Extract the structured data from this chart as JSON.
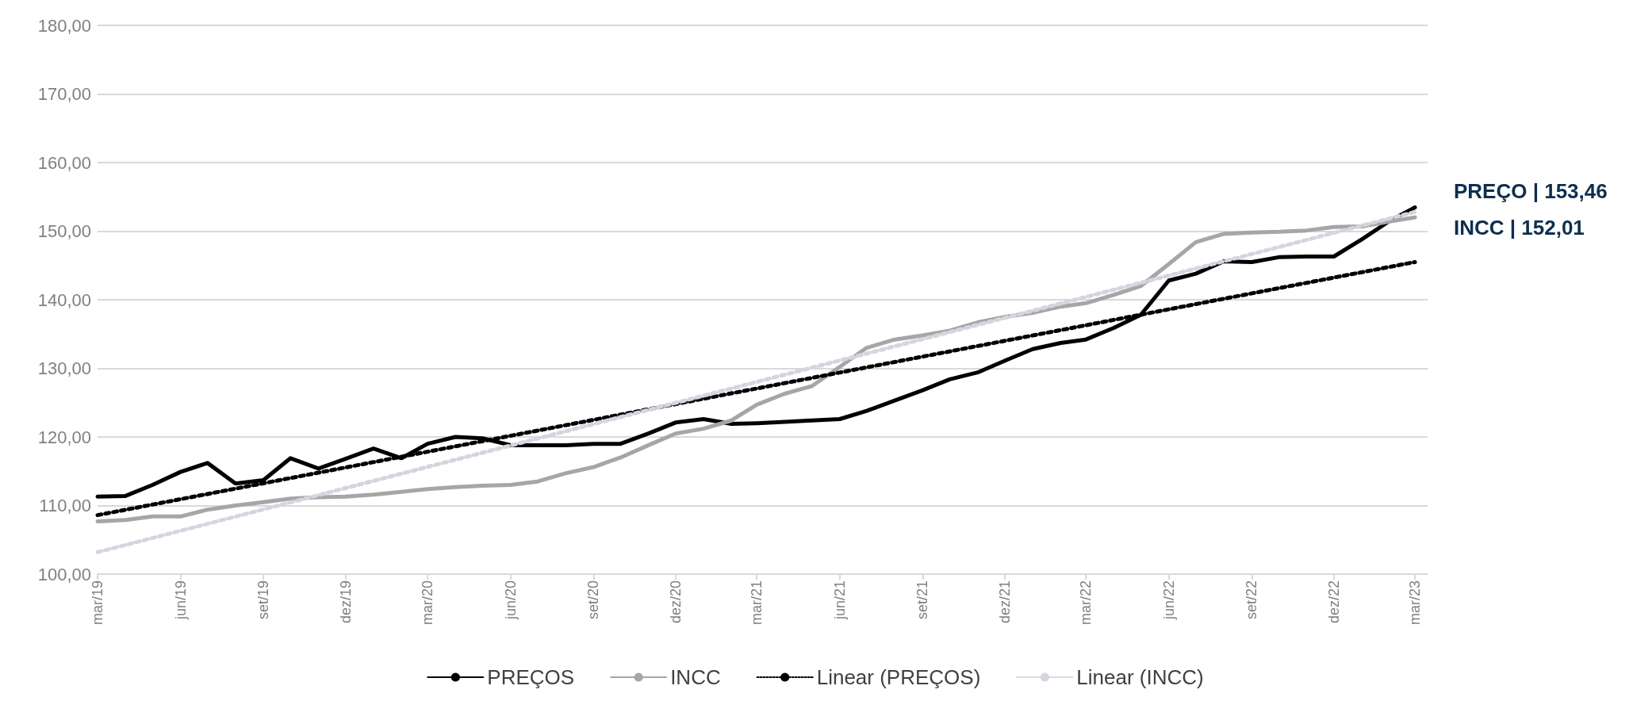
{
  "chart_data": {
    "type": "line",
    "x": [
      "2019-03",
      "2019-04",
      "2019-05",
      "2019-06",
      "2019-07",
      "2019-08",
      "2019-09",
      "2019-10",
      "2019-11",
      "2019-12",
      "2020-01",
      "2020-02",
      "2020-03",
      "2020-04",
      "2020-05",
      "2020-06",
      "2020-07",
      "2020-08",
      "2020-09",
      "2020-10",
      "2020-11",
      "2020-12",
      "2021-01",
      "2021-02",
      "2021-03",
      "2021-04",
      "2021-05",
      "2021-06",
      "2021-07",
      "2021-08",
      "2021-09",
      "2021-10",
      "2021-11",
      "2021-12",
      "2022-01",
      "2022-02",
      "2022-03",
      "2022-04",
      "2022-05",
      "2022-06",
      "2022-07",
      "2022-08",
      "2022-09",
      "2022-10",
      "2022-11",
      "2022-12",
      "2023-01",
      "2023-02",
      "2023-03"
    ],
    "series": [
      {
        "name": "PREÇOS",
        "color": "#000000",
        "line_style": "solid",
        "values": [
          111.3,
          111.4,
          113.0,
          114.9,
          116.2,
          113.2,
          113.7,
          116.9,
          115.4,
          116.8,
          118.3,
          116.9,
          119.0,
          120.0,
          119.8,
          118.8,
          118.8,
          118.8,
          119.0,
          119.0,
          120.5,
          122.1,
          122.6,
          121.9,
          122.0,
          122.2,
          122.4,
          122.6,
          123.8,
          125.3,
          126.8,
          128.4,
          129.4,
          131.1,
          132.8,
          133.7,
          134.2,
          135.9,
          137.8,
          142.8,
          143.8,
          145.6,
          145.5,
          146.2,
          146.3,
          146.3,
          148.8,
          151.5,
          153.46
        ]
      },
      {
        "name": "INCC",
        "color": "#a6a6a6",
        "line_style": "solid",
        "values": [
          107.7,
          107.9,
          108.4,
          108.4,
          109.4,
          110.0,
          110.5,
          111.0,
          111.2,
          111.3,
          111.6,
          112.0,
          112.4,
          112.7,
          112.9,
          113.0,
          113.5,
          114.7,
          115.6,
          117.0,
          118.8,
          120.5,
          121.2,
          122.4,
          124.7,
          126.3,
          127.4,
          130.2,
          133.0,
          134.2,
          134.8,
          135.5,
          136.7,
          137.5,
          138.1,
          139.0,
          139.5,
          140.7,
          142.0,
          145.2,
          148.4,
          149.6,
          149.8,
          149.9,
          150.1,
          150.6,
          150.7,
          151.4,
          152.01
        ]
      },
      {
        "name": "Linear (PREÇOS)",
        "color": "#000000",
        "line_style": "dotted",
        "x": [
          "2019-03",
          "2023-03"
        ],
        "values": [
          108.6,
          145.5
        ]
      },
      {
        "name": "Linear (INCC)",
        "color": "#d3d6de",
        "line_style": "dotted",
        "x": [
          "2019-03",
          "2023-03"
        ],
        "values": [
          103.2,
          152.8
        ]
      }
    ],
    "xlim": [
      "2019-03",
      "2023-03-15"
    ],
    "xticks": [
      {
        "value": "2019-03",
        "label": "mar/19"
      },
      {
        "value": "2019-06",
        "label": "jun/19"
      },
      {
        "value": "2019-09",
        "label": "set/19"
      },
      {
        "value": "2019-12",
        "label": "dez/19"
      },
      {
        "value": "2020-03",
        "label": "mar/20"
      },
      {
        "value": "2020-06",
        "label": "jun/20"
      },
      {
        "value": "2020-09",
        "label": "set/20"
      },
      {
        "value": "2020-12",
        "label": "dez/20"
      },
      {
        "value": "2021-03",
        "label": "mar/21"
      },
      {
        "value": "2021-06",
        "label": "jun/21"
      },
      {
        "value": "2021-09",
        "label": "set/21"
      },
      {
        "value": "2021-12",
        "label": "dez/21"
      },
      {
        "value": "2022-03",
        "label": "mar/22"
      },
      {
        "value": "2022-06",
        "label": "jun/22"
      },
      {
        "value": "2022-09",
        "label": "set/22"
      },
      {
        "value": "2022-12",
        "label": "dez/22"
      },
      {
        "value": "2023-03",
        "label": "mar/23"
      }
    ],
    "ylim": [
      100,
      180
    ],
    "yticks": [
      {
        "value": 100,
        "label": "100,00"
      },
      {
        "value": 110,
        "label": "110,00"
      },
      {
        "value": 120,
        "label": "120,00"
      },
      {
        "value": 130,
        "label": "130,00"
      },
      {
        "value": 140,
        "label": "140,00"
      },
      {
        "value": 150,
        "label": "150,00"
      },
      {
        "value": 160,
        "label": "160,00"
      },
      {
        "value": 170,
        "label": "170,00"
      },
      {
        "value": 180,
        "label": "180,00"
      }
    ],
    "annotations": [
      {
        "text": "PREÇO | 153,46",
        "x": "2023-03",
        "y": 153.46
      },
      {
        "text": "INCC | 152,01",
        "x": "2023-03",
        "y": 152.01
      }
    ],
    "grid": "y",
    "legend": "bottom",
    "marker": "none"
  }
}
